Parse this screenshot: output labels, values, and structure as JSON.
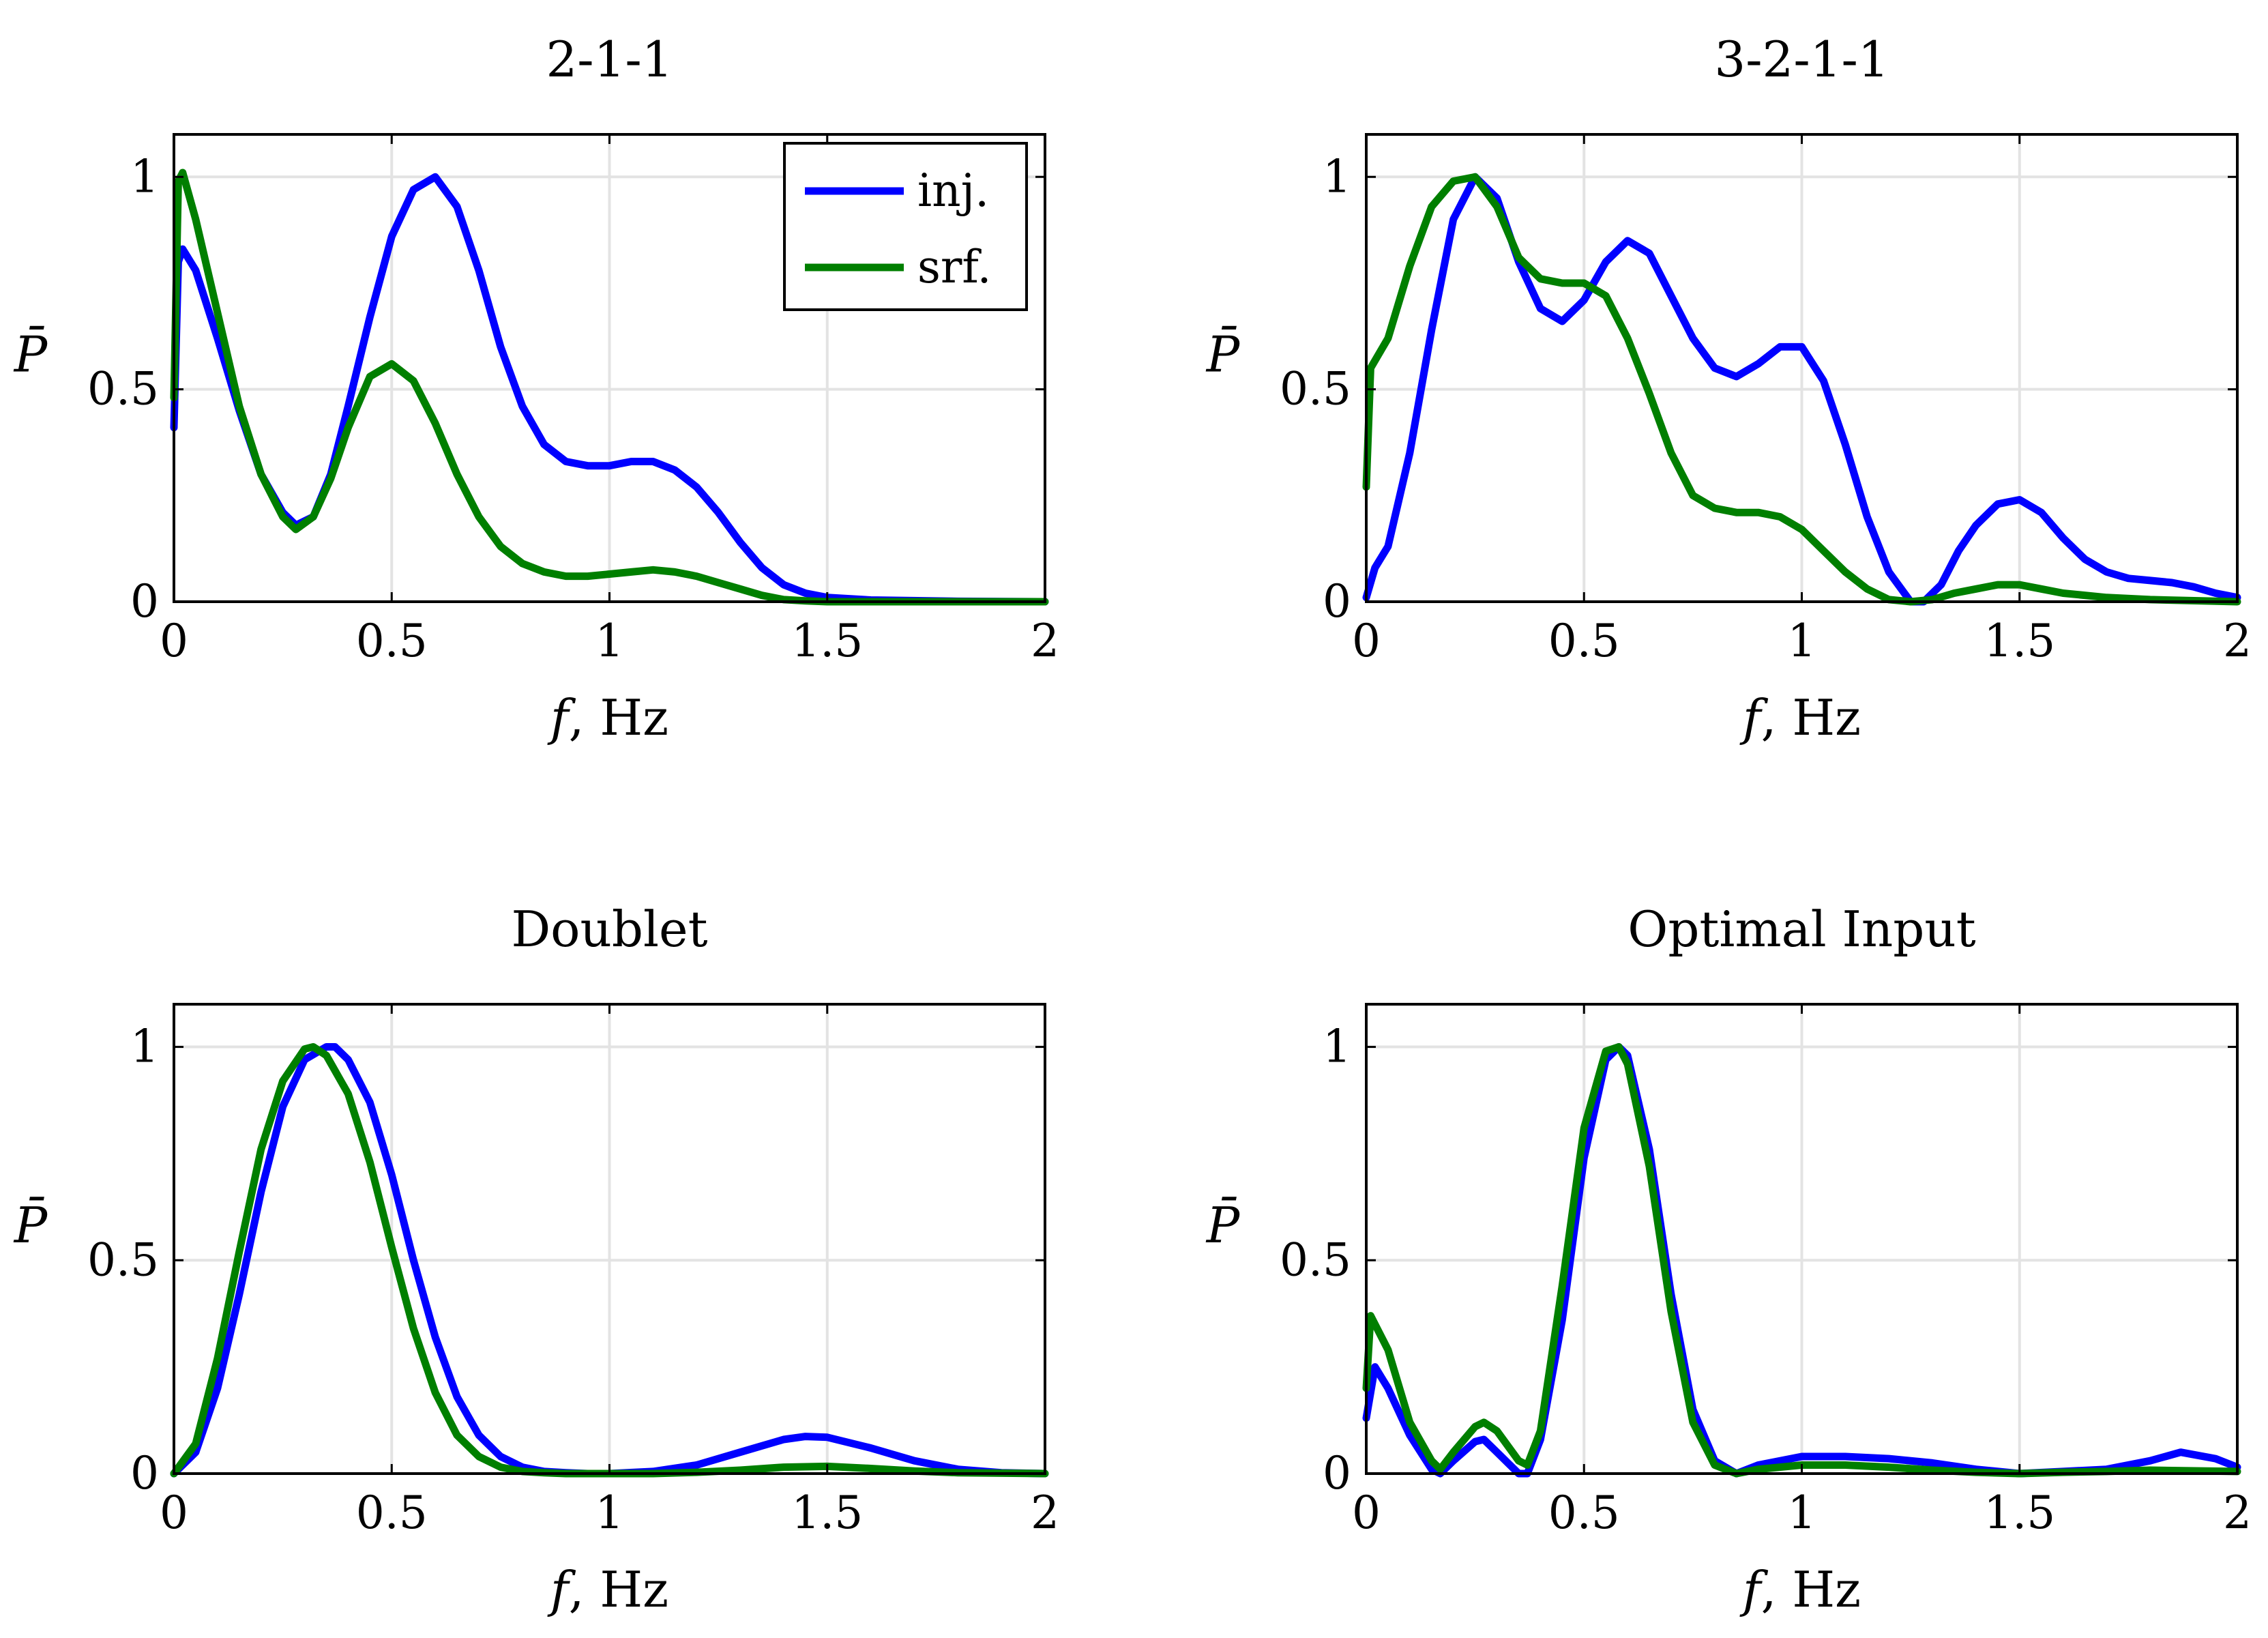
{
  "chart_data": [
    {
      "type": "line",
      "title": "2-1-1",
      "xlabel_var": "f",
      "xlabel_unit": ", Hz",
      "ylabel": "P̄",
      "xlim": [
        0,
        2
      ],
      "ylim": [
        0,
        1.1
      ],
      "xticks": [
        {
          "v": 0,
          "label": "0"
        },
        {
          "v": 0.5,
          "label": "0.5"
        },
        {
          "v": 1,
          "label": "1"
        },
        {
          "v": 1.5,
          "label": "1.5"
        },
        {
          "v": 2,
          "label": "2"
        }
      ],
      "yticks": [
        {
          "v": 0,
          "label": "0"
        },
        {
          "v": 0.5,
          "label": "0.5"
        },
        {
          "v": 1,
          "label": "1"
        }
      ],
      "grid": true,
      "legend": {
        "position": "top-right",
        "entries": [
          {
            "name": "inj.",
            "color": "#0000ff"
          },
          {
            "name": "srf.",
            "color": "#007f00"
          }
        ]
      },
      "series": [
        {
          "name": "inj.",
          "color": "#0000ff",
          "x": [
            0,
            0.01,
            0.02,
            0.05,
            0.1,
            0.15,
            0.2,
            0.25,
            0.28,
            0.32,
            0.36,
            0.4,
            0.45,
            0.5,
            0.55,
            0.6,
            0.65,
            0.7,
            0.75,
            0.8,
            0.85,
            0.9,
            0.95,
            1.0,
            1.05,
            1.1,
            1.15,
            1.2,
            1.25,
            1.3,
            1.35,
            1.4,
            1.45,
            1.5,
            1.6,
            1.8,
            2.0
          ],
          "y": [
            0.41,
            0.8,
            0.83,
            0.78,
            0.62,
            0.45,
            0.3,
            0.21,
            0.18,
            0.2,
            0.3,
            0.46,
            0.67,
            0.86,
            0.97,
            1.0,
            0.93,
            0.78,
            0.6,
            0.46,
            0.37,
            0.33,
            0.32,
            0.32,
            0.33,
            0.33,
            0.31,
            0.27,
            0.21,
            0.14,
            0.08,
            0.04,
            0.02,
            0.01,
            0.004,
            0.001,
            0.0
          ]
        },
        {
          "name": "srf.",
          "color": "#007f00",
          "x": [
            0,
            0.01,
            0.02,
            0.05,
            0.1,
            0.15,
            0.2,
            0.25,
            0.28,
            0.32,
            0.36,
            0.4,
            0.45,
            0.5,
            0.55,
            0.6,
            0.65,
            0.7,
            0.75,
            0.8,
            0.85,
            0.9,
            0.95,
            1.0,
            1.05,
            1.1,
            1.15,
            1.2,
            1.25,
            1.3,
            1.35,
            1.4,
            1.45,
            1.5,
            1.6,
            1.8,
            2.0
          ],
          "y": [
            0.48,
            0.99,
            1.01,
            0.9,
            0.68,
            0.46,
            0.3,
            0.2,
            0.17,
            0.2,
            0.29,
            0.41,
            0.53,
            0.56,
            0.52,
            0.42,
            0.3,
            0.2,
            0.13,
            0.09,
            0.07,
            0.06,
            0.06,
            0.065,
            0.07,
            0.075,
            0.07,
            0.06,
            0.045,
            0.03,
            0.015,
            0.005,
            0.002,
            0.0,
            0.0,
            0.0,
            0.0
          ]
        }
      ]
    },
    {
      "type": "line",
      "title": "3-2-1-1",
      "xlabel_var": "f",
      "xlabel_unit": ", Hz",
      "ylabel": "P̄",
      "xlim": [
        0,
        2
      ],
      "ylim": [
        0,
        1.1
      ],
      "xticks": [
        {
          "v": 0,
          "label": "0"
        },
        {
          "v": 0.5,
          "label": "0.5"
        },
        {
          "v": 1,
          "label": "1"
        },
        {
          "v": 1.5,
          "label": "1.5"
        },
        {
          "v": 2,
          "label": "2"
        }
      ],
      "yticks": [
        {
          "v": 0,
          "label": "0"
        },
        {
          "v": 0.5,
          "label": "0.5"
        },
        {
          "v": 1,
          "label": "1"
        }
      ],
      "grid": true,
      "series": [
        {
          "name": "inj.",
          "color": "#0000ff",
          "x": [
            0,
            0.02,
            0.05,
            0.1,
            0.15,
            0.2,
            0.25,
            0.3,
            0.35,
            0.4,
            0.45,
            0.5,
            0.55,
            0.6,
            0.65,
            0.7,
            0.75,
            0.8,
            0.85,
            0.9,
            0.95,
            1.0,
            1.05,
            1.1,
            1.15,
            1.2,
            1.25,
            1.28,
            1.32,
            1.36,
            1.4,
            1.45,
            1.5,
            1.55,
            1.6,
            1.65,
            1.7,
            1.75,
            1.8,
            1.85,
            1.9,
            1.95,
            2.0
          ],
          "y": [
            0.01,
            0.08,
            0.13,
            0.35,
            0.64,
            0.9,
            1.0,
            0.95,
            0.8,
            0.69,
            0.66,
            0.71,
            0.8,
            0.85,
            0.82,
            0.72,
            0.62,
            0.55,
            0.53,
            0.56,
            0.6,
            0.6,
            0.52,
            0.37,
            0.2,
            0.07,
            0.0,
            0.0,
            0.04,
            0.12,
            0.18,
            0.23,
            0.24,
            0.21,
            0.15,
            0.1,
            0.07,
            0.055,
            0.05,
            0.045,
            0.035,
            0.02,
            0.01
          ]
        },
        {
          "name": "srf.",
          "color": "#007f00",
          "x": [
            0,
            0.01,
            0.05,
            0.1,
            0.15,
            0.2,
            0.25,
            0.3,
            0.35,
            0.4,
            0.45,
            0.5,
            0.55,
            0.6,
            0.65,
            0.7,
            0.75,
            0.8,
            0.85,
            0.9,
            0.95,
            1.0,
            1.05,
            1.1,
            1.15,
            1.2,
            1.25,
            1.3,
            1.35,
            1.4,
            1.45,
            1.5,
            1.55,
            1.6,
            1.7,
            1.8,
            2.0
          ],
          "y": [
            0.27,
            0.55,
            0.62,
            0.79,
            0.93,
            0.99,
            1.0,
            0.93,
            0.81,
            0.76,
            0.75,
            0.75,
            0.72,
            0.62,
            0.49,
            0.35,
            0.25,
            0.22,
            0.21,
            0.21,
            0.2,
            0.17,
            0.12,
            0.07,
            0.03,
            0.005,
            0.0,
            0.005,
            0.02,
            0.03,
            0.04,
            0.04,
            0.03,
            0.02,
            0.01,
            0.005,
            0.0
          ]
        }
      ]
    },
    {
      "type": "line",
      "title": "Doublet",
      "xlabel_var": "f",
      "xlabel_unit": ", Hz",
      "ylabel": "P̄",
      "xlim": [
        0,
        2
      ],
      "ylim": [
        0,
        1.1
      ],
      "xticks": [
        {
          "v": 0,
          "label": "0"
        },
        {
          "v": 0.5,
          "label": "0.5"
        },
        {
          "v": 1,
          "label": "1"
        },
        {
          "v": 1.5,
          "label": "1.5"
        },
        {
          "v": 2,
          "label": "2"
        }
      ],
      "yticks": [
        {
          "v": 0,
          "label": "0"
        },
        {
          "v": 0.5,
          "label": "0.5"
        },
        {
          "v": 1,
          "label": "1"
        }
      ],
      "grid": true,
      "series": [
        {
          "name": "inj.",
          "color": "#0000ff",
          "x": [
            0,
            0.05,
            0.1,
            0.15,
            0.2,
            0.25,
            0.3,
            0.35,
            0.37,
            0.4,
            0.45,
            0.5,
            0.55,
            0.6,
            0.65,
            0.7,
            0.75,
            0.8,
            0.85,
            0.9,
            0.95,
            1.0,
            1.1,
            1.2,
            1.3,
            1.4,
            1.45,
            1.5,
            1.6,
            1.7,
            1.8,
            1.9,
            2.0
          ],
          "y": [
            0.0,
            0.05,
            0.2,
            0.42,
            0.66,
            0.86,
            0.97,
            1.0,
            1.0,
            0.97,
            0.87,
            0.7,
            0.5,
            0.32,
            0.18,
            0.09,
            0.04,
            0.015,
            0.005,
            0.002,
            0.0,
            0.0,
            0.005,
            0.02,
            0.05,
            0.08,
            0.087,
            0.085,
            0.06,
            0.03,
            0.01,
            0.002,
            0.0
          ]
        },
        {
          "name": "srf.",
          "color": "#007f00",
          "x": [
            0,
            0.05,
            0.1,
            0.15,
            0.2,
            0.25,
            0.3,
            0.32,
            0.35,
            0.4,
            0.45,
            0.5,
            0.55,
            0.6,
            0.65,
            0.7,
            0.75,
            0.8,
            0.85,
            0.9,
            1.0,
            1.1,
            1.2,
            1.3,
            1.4,
            1.5,
            1.6,
            1.7,
            1.8,
            2.0
          ],
          "y": [
            0.0,
            0.07,
            0.27,
            0.52,
            0.76,
            0.92,
            0.995,
            1.0,
            0.98,
            0.89,
            0.73,
            0.53,
            0.34,
            0.19,
            0.09,
            0.04,
            0.015,
            0.005,
            0.002,
            0.0,
            0.0,
            0.0,
            0.003,
            0.008,
            0.015,
            0.017,
            0.012,
            0.006,
            0.002,
            0.0
          ]
        }
      ]
    },
    {
      "type": "line",
      "title": "Optimal Input",
      "xlabel_var": "f",
      "xlabel_unit": ", Hz",
      "ylabel": "P̄",
      "xlim": [
        0,
        2
      ],
      "ylim": [
        0,
        1.1
      ],
      "xticks": [
        {
          "v": 0,
          "label": "0"
        },
        {
          "v": 0.5,
          "label": "0.5"
        },
        {
          "v": 1,
          "label": "1"
        },
        {
          "v": 1.5,
          "label": "1.5"
        },
        {
          "v": 2,
          "label": "2"
        }
      ],
      "yticks": [
        {
          "v": 0,
          "label": "0"
        },
        {
          "v": 0.5,
          "label": "0.5"
        },
        {
          "v": 1,
          "label": "1"
        }
      ],
      "grid": true,
      "series": [
        {
          "name": "inj.",
          "color": "#0000ff",
          "x": [
            0,
            0.02,
            0.05,
            0.1,
            0.15,
            0.17,
            0.2,
            0.25,
            0.27,
            0.3,
            0.35,
            0.37,
            0.4,
            0.45,
            0.5,
            0.55,
            0.58,
            0.6,
            0.65,
            0.7,
            0.75,
            0.8,
            0.85,
            0.9,
            1.0,
            1.1,
            1.2,
            1.3,
            1.4,
            1.5,
            1.6,
            1.7,
            1.8,
            1.87,
            1.95,
            2.0
          ],
          "y": [
            0.13,
            0.25,
            0.2,
            0.09,
            0.01,
            0.0,
            0.03,
            0.075,
            0.08,
            0.05,
            0.0,
            0.0,
            0.08,
            0.36,
            0.74,
            0.97,
            1.0,
            0.98,
            0.76,
            0.42,
            0.15,
            0.03,
            0.0,
            0.02,
            0.04,
            0.04,
            0.035,
            0.025,
            0.01,
            0.0,
            0.005,
            0.01,
            0.03,
            0.05,
            0.035,
            0.015
          ]
        },
        {
          "name": "srf.",
          "color": "#007f00",
          "x": [
            0,
            0.01,
            0.05,
            0.1,
            0.15,
            0.17,
            0.2,
            0.25,
            0.27,
            0.3,
            0.35,
            0.37,
            0.4,
            0.45,
            0.5,
            0.55,
            0.58,
            0.6,
            0.65,
            0.7,
            0.75,
            0.8,
            0.85,
            0.9,
            1.0,
            1.1,
            1.2,
            1.3,
            1.4,
            1.5,
            1.6,
            1.7,
            1.8,
            2.0
          ],
          "y": [
            0.2,
            0.37,
            0.29,
            0.12,
            0.03,
            0.01,
            0.05,
            0.11,
            0.12,
            0.1,
            0.03,
            0.02,
            0.1,
            0.44,
            0.81,
            0.99,
            1.0,
            0.96,
            0.72,
            0.38,
            0.12,
            0.02,
            0.0,
            0.01,
            0.02,
            0.02,
            0.015,
            0.008,
            0.003,
            0.0,
            0.003,
            0.005,
            0.008,
            0.005
          ]
        }
      ]
    }
  ]
}
